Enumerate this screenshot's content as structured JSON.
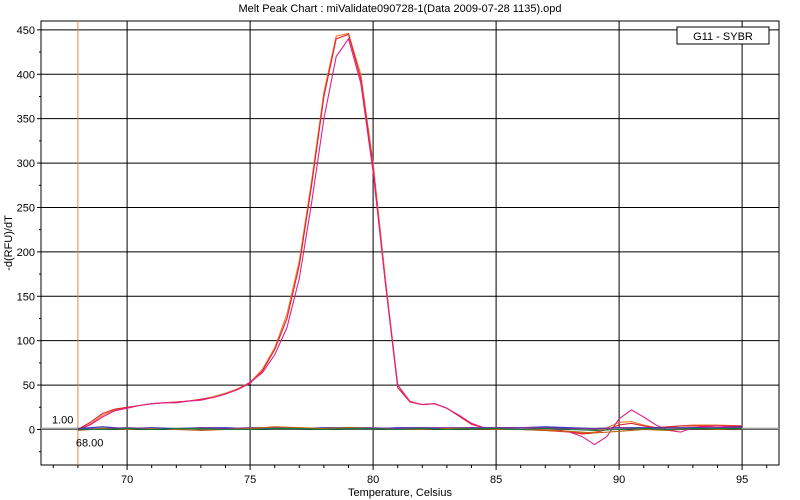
{
  "chart_data": {
    "type": "line",
    "title": "Melt Peak Chart : miValidate090728-1(Data 2009-07-28 1135).opd",
    "xlabel": "Temperature, Celsius",
    "ylabel": "-d(RFU)/dT",
    "xlim": [
      66.5,
      96.5
    ],
    "ylim": [
      -40,
      460
    ],
    "xticks": [
      70,
      75,
      80,
      85,
      90,
      95
    ],
    "yticks": [
      0,
      50,
      100,
      150,
      200,
      250,
      300,
      350,
      400,
      450
    ],
    "grid": true,
    "legend": {
      "position": "top-right",
      "entries": [
        "G11 - SYBR"
      ]
    },
    "threshold": {
      "value": 1.0,
      "label": "1.00",
      "color": "#a0a0a0"
    },
    "start_marker": {
      "x": 68.0,
      "label": "68.00",
      "color": "#e08a3c"
    },
    "series": [
      {
        "color": "#f07a2a",
        "x": [
          68,
          68.5,
          69,
          69.5,
          70,
          70.5,
          71,
          71.5,
          72,
          72.5,
          73,
          73.5,
          74,
          74.5,
          75,
          75.5,
          76,
          76.5,
          77,
          77.5,
          78,
          78.5,
          79,
          79.5,
          80,
          80.5,
          81,
          81.5,
          82,
          82.5,
          83,
          83.5,
          84,
          84.5,
          85,
          86,
          87,
          88,
          88.5,
          89,
          89.5,
          90,
          90.5,
          91,
          91.5,
          92,
          92.5,
          93,
          94,
          95
        ],
        "y": [
          0,
          6,
          16,
          22,
          24,
          27,
          29,
          30,
          31,
          32,
          34,
          37,
          41,
          46,
          53,
          68,
          92,
          130,
          190,
          280,
          380,
          443,
          446,
          400,
          300,
          170,
          50,
          32,
          28,
          29,
          24,
          15,
          6,
          2,
          1,
          0,
          0,
          -2,
          -4,
          -3,
          2,
          8,
          9,
          5,
          2,
          3,
          4,
          5,
          5,
          4
        ]
      },
      {
        "color": "#e0202a",
        "x": [
          68,
          68.5,
          69,
          69.5,
          70,
          70.5,
          71,
          71.5,
          72,
          72.5,
          73,
          73.5,
          74,
          74.5,
          75,
          75.5,
          76,
          76.5,
          77,
          77.5,
          78,
          78.5,
          79,
          79.5,
          80,
          80.5,
          81,
          81.5,
          82,
          82.5,
          83,
          83.5,
          84,
          84.5,
          85,
          86,
          87,
          88,
          88.5,
          89,
          89.5,
          90,
          90.5,
          91,
          91.5,
          92,
          92.5,
          93,
          94,
          95
        ],
        "y": [
          0,
          8,
          18,
          23,
          25,
          27,
          29,
          30,
          31,
          32,
          34,
          36,
          40,
          45,
          52,
          66,
          90,
          125,
          185,
          275,
          375,
          440,
          445,
          395,
          295,
          165,
          47,
          31,
          28,
          29,
          24,
          15,
          6,
          2,
          1,
          0,
          -1,
          -3,
          -5,
          -4,
          0,
          5,
          7,
          4,
          2,
          3,
          4,
          4,
          4,
          4
        ]
      },
      {
        "color": "#e0208c",
        "x": [
          68,
          68.5,
          69,
          69.5,
          70,
          70.5,
          71,
          71.5,
          72,
          72.5,
          73,
          73.5,
          74,
          74.5,
          75,
          75.5,
          76,
          76.5,
          77,
          77.5,
          78,
          78.5,
          79,
          79.5,
          80,
          80.5,
          81,
          81.5,
          82,
          82.5,
          83,
          83.5,
          84,
          84.5,
          85,
          86,
          87,
          88,
          88.5,
          89,
          89.5,
          90,
          90.5,
          91,
          91.5,
          92,
          92.5,
          93,
          94,
          95
        ],
        "y": [
          0,
          5,
          14,
          21,
          24,
          27,
          29,
          30,
          30,
          32,
          33,
          36,
          40,
          45,
          53,
          64,
          84,
          115,
          170,
          255,
          350,
          420,
          440,
          390,
          290,
          165,
          50,
          31,
          28,
          29,
          24,
          16,
          7,
          2,
          1,
          0,
          2,
          -3,
          -8,
          -17,
          -8,
          12,
          22,
          14,
          5,
          -1,
          -3,
          2,
          4,
          2
        ]
      },
      {
        "color": "#3030c0",
        "x": [
          68,
          69,
          70,
          71,
          72,
          73,
          74,
          75,
          76,
          77,
          78,
          79,
          80,
          81,
          82,
          83,
          84,
          85,
          86,
          87,
          88,
          89,
          90,
          91,
          92,
          93,
          94,
          95
        ],
        "y": [
          1,
          3,
          1,
          2,
          1,
          2,
          2,
          1,
          2,
          1,
          2,
          2,
          1,
          2,
          2,
          1,
          2,
          2,
          2,
          3,
          2,
          1,
          2,
          2,
          2,
          2,
          2,
          3
        ]
      },
      {
        "color": "#8030a0",
        "x": [
          68,
          69,
          70,
          71,
          72,
          73,
          74,
          75,
          76,
          77,
          78,
          79,
          80,
          81,
          82,
          83,
          84,
          85,
          86,
          87,
          88,
          89,
          90,
          91,
          92,
          93,
          94,
          95
        ],
        "y": [
          0,
          1,
          2,
          1,
          0,
          2,
          1,
          2,
          2,
          1,
          1,
          2,
          2,
          1,
          2,
          2,
          2,
          2,
          2,
          2,
          1,
          1,
          2,
          1,
          2,
          1,
          2,
          2
        ]
      },
      {
        "color": "#c06010",
        "x": [
          68,
          69,
          70,
          71,
          72,
          73,
          74,
          75,
          76,
          77,
          78,
          79,
          80,
          81,
          82,
          83,
          84,
          85,
          86,
          87,
          88,
          89,
          90,
          91,
          92,
          93,
          94,
          95
        ],
        "y": [
          -1,
          1,
          0,
          1,
          0,
          -1,
          0,
          1,
          3,
          2,
          1,
          2,
          1,
          0,
          0,
          1,
          1,
          0,
          0,
          -1,
          -2,
          -4,
          -2,
          0,
          -1,
          1,
          0,
          1
        ]
      },
      {
        "color": "#108040",
        "x": [
          68,
          69,
          70,
          71,
          72,
          73,
          74,
          75,
          76,
          77,
          78,
          79,
          80,
          81,
          82,
          83,
          84,
          85,
          86,
          87,
          88,
          89,
          90,
          91,
          92,
          93,
          94,
          95
        ],
        "y": [
          0,
          0,
          1,
          0,
          1,
          1,
          0,
          0,
          1,
          1,
          0,
          1,
          1,
          0,
          1,
          0,
          1,
          1,
          0,
          1,
          0,
          -1,
          0,
          1,
          0,
          1,
          1,
          1
        ]
      }
    ]
  }
}
